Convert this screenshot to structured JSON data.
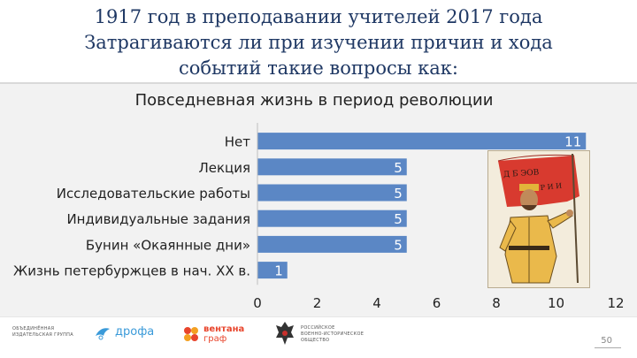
{
  "slide": {
    "title_lines": [
      "1917 год в преподавании учителей 2017 года",
      "Затрагиваются ли при изучении причин и хода",
      "событий такие вопросы как:"
    ],
    "page_number": "50"
  },
  "chart_data": {
    "type": "bar",
    "orientation": "horizontal",
    "title": "Повседневная жизнь в период революции",
    "categories": [
      "Нет",
      "Лекция",
      "Исследовательские работы",
      "Индивидуальные задания",
      "Бунин «Окаянные дни»",
      "Жизнь петербуржцев в нач. XX в."
    ],
    "values": [
      11,
      5,
      5,
      5,
      5,
      1
    ],
    "xlim": [
      0,
      12
    ],
    "x_ticks": [
      "0",
      "2",
      "4",
      "6",
      "8",
      "10",
      "12"
    ],
    "bar_color": "#5b87c5",
    "data_labels": true,
    "grid": false
  },
  "footer": {
    "logos": [
      {
        "name": "ob-group-logo",
        "lines": [
          "ОБЪЕДИНЁННАЯ",
          "ИЗДАТЕЛЬСКАЯ ГРУППА"
        ]
      },
      {
        "name": "drofa-logo",
        "text": "дрофа",
        "color": "#3a9ad9"
      },
      {
        "name": "ventana-logo",
        "lines": [
          "вентана",
          "граф"
        ],
        "color": "#e8452c"
      },
      {
        "name": "rvio-logo",
        "lines": [
          "РОССИЙСКОЕ",
          "ВОЕННО-ИСТОРИЧЕСКОЕ",
          "ОБЩЕСТВО"
        ]
      }
    ]
  }
}
